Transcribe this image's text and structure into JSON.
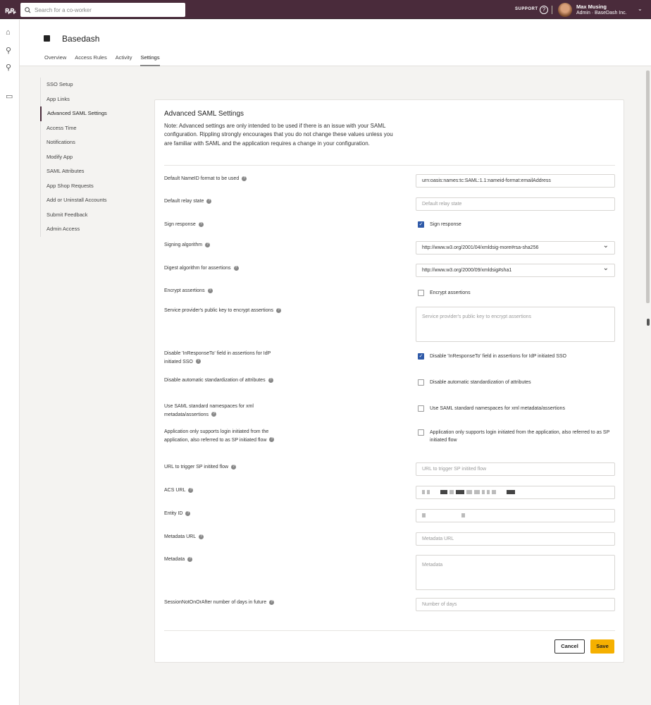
{
  "topbar": {
    "search_placeholder": "Search for a co-worker",
    "support": "SUPPORT",
    "user_name": "Max Musing",
    "user_role": "Admin · BaseDash Inc."
  },
  "app": {
    "title": "Basedash",
    "tabs": [
      "Overview",
      "Access Rules",
      "Activity",
      "Settings"
    ],
    "active_tab": "Settings"
  },
  "sidebar": {
    "items": [
      "SSO Setup",
      "App Links",
      "Advanced SAML Settings",
      "Access Time",
      "Notifications",
      "Modify App",
      "SAML Attributes",
      "App Shop Requests",
      "Add or Uninstall Accounts",
      "Submit Feedback",
      "Admin Access"
    ],
    "active": "Advanced SAML Settings"
  },
  "card": {
    "title": "Advanced SAML Settings",
    "note": "Note: Advanced settings are only intended to be used if there is an issue with your SAML configuration. Rippling strongly encourages that you do not change these values unless you are familiar with SAML and the application requires a change in your configuration.",
    "fields": [
      {
        "label": "Default NameID format to be used",
        "type": "text",
        "value": "urn:oasis:names:tc:SAML:1.1:nameid-format:emailAddress"
      },
      {
        "label": "Default relay state",
        "type": "text",
        "placeholder": "Default relay state"
      },
      {
        "label": "Sign response",
        "type": "checkbox",
        "text": "Sign response",
        "checked": true
      },
      {
        "label": "Signing algorithm",
        "type": "select",
        "value": "http://www.w3.org/2001/04/xmldsig-more#rsa-sha256"
      },
      {
        "label": "Digest algorithm for assertions",
        "type": "select",
        "value": "http://www.w3.org/2000/09/xmldsig#sha1"
      },
      {
        "label": "Encrypt assertions",
        "type": "checkbox",
        "text": "Encrypt assertions",
        "checked": false
      },
      {
        "label": "Service provider's public key to encrypt assertions",
        "type": "textarea",
        "placeholder": "Service provider's public key to encrypt assertions"
      },
      {
        "label": "Disable 'InResponseTo' field in assertions for IdP initiated SSO",
        "type": "checkbox",
        "text": "Disable 'InResponseTo' field in assertions for IdP initiated SSO",
        "checked": true
      },
      {
        "label": "Disable automatic standardization of attributes",
        "type": "checkbox",
        "text": "Disable automatic standardization of attributes",
        "checked": false
      },
      {
        "label": "Use SAML standard namespaces for xml metadata/assertions",
        "type": "checkbox",
        "text": "Use SAML standard namespaces for xml metadata/assertions",
        "checked": false
      },
      {
        "label": "Application only supports login initiated from the application, also referred to as SP initiated flow",
        "type": "checkbox",
        "text": "Application only supports login initiated from the application, also referred to as SP initiated flow",
        "checked": false
      },
      {
        "label": "URL to trigger SP initited flow",
        "type": "text",
        "placeholder": "URL to trigger SP initited flow"
      },
      {
        "label": "ACS URL",
        "type": "redacted"
      },
      {
        "label": "Entity ID",
        "type": "redacted"
      },
      {
        "label": "Metadata URL",
        "type": "text",
        "placeholder": "Metadata URL"
      },
      {
        "label": "Metadata",
        "type": "textarea",
        "placeholder": "Metadata"
      },
      {
        "label": "SessionNotOnOrAfter number of days in future",
        "type": "text",
        "placeholder": "Number of days"
      }
    ],
    "cancel": "Cancel",
    "save": "Save"
  },
  "colors": {
    "topbar": "#4a2b3b",
    "checkbox": "#2f5aa8",
    "save": "#f5b000"
  }
}
